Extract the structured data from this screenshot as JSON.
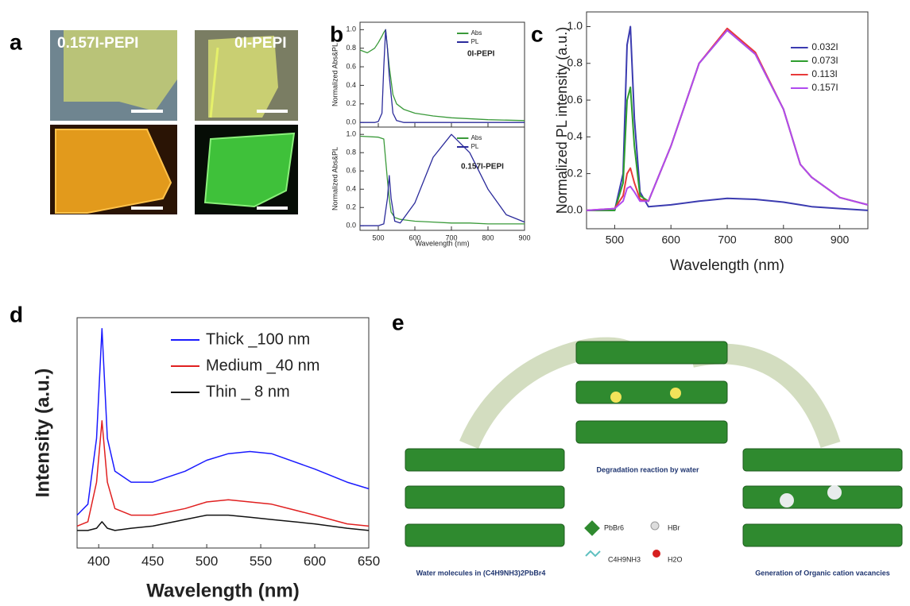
{
  "panel_letters": [
    "a",
    "b",
    "c",
    "d",
    "e"
  ],
  "panel_a": {
    "sample_labels": [
      "0.157I-PEPI",
      "0I-PEPI"
    ]
  },
  "panel_e": {
    "captions": [
      "Degradation reaction by water",
      "Water molecules in (C4H9NH3)2PbBr4",
      "Generation of Organic cation vacancies"
    ],
    "legend": [
      "PbBr6",
      "HBr",
      "C4H9NH3",
      "H2O"
    ]
  },
  "chart_data": [
    {
      "type": "line",
      "y_label": "Normalized Abs&PL",
      "annotation": "0I-PEPI",
      "x": [
        450,
        470,
        490,
        500,
        510,
        515,
        520,
        525,
        530,
        540,
        550,
        570,
        600,
        650,
        700,
        800,
        900
      ],
      "series": [
        {
          "name": "Abs",
          "color": "#3a9a3a",
          "values": [
            0.78,
            0.75,
            0.8,
            0.86,
            0.93,
            0.97,
            1.0,
            0.8,
            0.6,
            0.3,
            0.2,
            0.14,
            0.1,
            0.07,
            0.05,
            0.03,
            0.02
          ]
        },
        {
          "name": "PL",
          "color": "#2b2b9b",
          "values": [
            0,
            0,
            0,
            0.01,
            0.1,
            0.6,
            1.0,
            0.8,
            0.5,
            0.1,
            0.02,
            0,
            0,
            0,
            0,
            0,
            0
          ]
        }
      ],
      "xlim": [
        450,
        900
      ],
      "ylim": [
        -0.05,
        1.08
      ],
      "xticks": [
        500,
        600,
        700,
        800,
        900
      ],
      "yticks": [
        {
          "value": 0,
          "label": "0.0"
        },
        0.2,
        0.4,
        0.6,
        0.8,
        {
          "value": 1,
          "label": "1.0"
        }
      ]
    },
    {
      "type": "line",
      "y_label": "Normalized Abs&PL",
      "x_label": "Wavelength (nm)",
      "annotation": "0.157I-PEPI",
      "x": [
        450,
        500,
        515,
        525,
        530,
        535,
        545,
        560,
        600,
        650,
        700,
        750,
        800,
        850,
        900
      ],
      "series": [
        {
          "name": "Abs",
          "color": "#3a9a3a",
          "values": [
            0.98,
            0.97,
            0.95,
            0.5,
            0.3,
            0.15,
            0.09,
            0.07,
            0.05,
            0.04,
            0.03,
            0.03,
            0.02,
            0.02,
            0.02
          ]
        },
        {
          "name": "PL",
          "color": "#2b2b9b",
          "values": [
            0,
            0,
            0.02,
            0.3,
            0.55,
            0.3,
            0.05,
            0.03,
            0.25,
            0.75,
            1.0,
            0.8,
            0.4,
            0.12,
            0.04
          ]
        }
      ],
      "xlim": [
        450,
        900
      ],
      "ylim": [
        -0.05,
        1.08
      ],
      "xticks": [
        500,
        600,
        700,
        800,
        900
      ],
      "yticks": [
        {
          "value": 0,
          "label": "0.0"
        },
        0.2,
        0.4,
        0.6,
        0.8,
        {
          "value": 1,
          "label": "1.0"
        }
      ]
    },
    {
      "type": "line",
      "y_label": "Normalized PL intensity (a.u.)",
      "x_label": "Wavelength (nm)",
      "x": [
        450,
        500,
        515,
        522,
        528,
        535,
        545,
        560,
        600,
        650,
        700,
        750,
        800,
        830,
        850,
        900,
        950
      ],
      "series": [
        {
          "name": "0.032I",
          "color": "#3b3bb0",
          "values": [
            0,
            0,
            0.2,
            0.9,
            1.0,
            0.5,
            0.1,
            0.02,
            0.03,
            0.05,
            0.065,
            0.06,
            0.045,
            0.03,
            0.02,
            0.01,
            0
          ]
        },
        {
          "name": "0.073I",
          "color": "#2e9e2e",
          "values": [
            0,
            0,
            0.15,
            0.6,
            0.67,
            0.35,
            0.08,
            0.05,
            0.35,
            0.8,
            0.98,
            0.85,
            0.55,
            0.25,
            0.18,
            0.07,
            0.03
          ]
        },
        {
          "name": "0.113I",
          "color": "#e83a3a",
          "values": [
            0,
            0.01,
            0.08,
            0.2,
            0.23,
            0.15,
            0.06,
            0.05,
            0.35,
            0.8,
            0.99,
            0.86,
            0.55,
            0.25,
            0.18,
            0.07,
            0.03
          ]
        },
        {
          "name": "0.157I",
          "color": "#b04aef",
          "values": [
            0,
            0.01,
            0.05,
            0.12,
            0.13,
            0.1,
            0.05,
            0.05,
            0.35,
            0.8,
            0.98,
            0.85,
            0.55,
            0.25,
            0.18,
            0.07,
            0.03
          ]
        }
      ],
      "xlim": [
        450,
        950
      ],
      "ylim": [
        -0.1,
        1.08
      ],
      "xticks": [
        500,
        600,
        700,
        800,
        900
      ],
      "yticks": [
        {
          "value": 0,
          "label": "0.0"
        },
        0.2,
        0.4,
        0.6,
        0.8,
        {
          "value": 1,
          "label": "1.0"
        }
      ],
      "legend": "upper right"
    },
    {
      "type": "line",
      "y_label": "Intensity (a.u.)",
      "x_label": "Wavelength (nm)",
      "x": [
        380,
        390,
        398,
        403,
        408,
        415,
        430,
        450,
        480,
        500,
        520,
        540,
        560,
        600,
        630,
        650
      ],
      "series": [
        {
          "name": "Thick _100 nm",
          "color": "#1a1aff",
          "values": [
            0.15,
            0.2,
            0.5,
            1.0,
            0.5,
            0.35,
            0.3,
            0.3,
            0.35,
            0.4,
            0.43,
            0.44,
            0.43,
            0.36,
            0.3,
            0.27
          ]
        },
        {
          "name": "Medium _40 nm",
          "color": "#e02020",
          "values": [
            0.1,
            0.12,
            0.3,
            0.58,
            0.3,
            0.18,
            0.15,
            0.15,
            0.18,
            0.21,
            0.22,
            0.21,
            0.2,
            0.15,
            0.11,
            0.1
          ]
        },
        {
          "name": "Thin _ 8 nm",
          "color": "#111111",
          "values": [
            0.08,
            0.08,
            0.09,
            0.12,
            0.09,
            0.08,
            0.09,
            0.1,
            0.13,
            0.15,
            0.15,
            0.14,
            0.13,
            0.11,
            0.09,
            0.08
          ]
        }
      ],
      "xlim": [
        380,
        650
      ],
      "ylim": [
        0,
        1.05
      ],
      "xticks": [
        400,
        450,
        500,
        550,
        600,
        650
      ],
      "legend": "upper right"
    }
  ]
}
